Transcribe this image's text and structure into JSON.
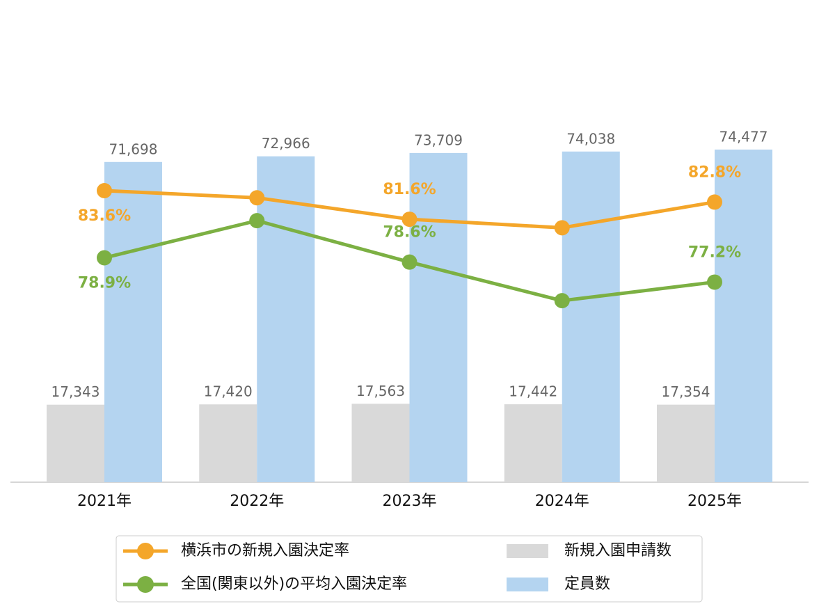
{
  "chart_data": {
    "type": "combo",
    "categories": [
      "2021年",
      "2022年",
      "2023年",
      "2024年",
      "2025年"
    ],
    "ylim": [
      0,
      80000
    ],
    "y2lim": [
      63.2,
      88.2
    ],
    "legend": "bottom",
    "series": [
      {
        "name": "横浜市の新規入園決定率",
        "type": "line",
        "axis": "y2",
        "color": "#f4a62a",
        "values": [
          83.6,
          83.1,
          81.6,
          81.0,
          82.8
        ],
        "value_labels": [
          "83.6%",
          null,
          "81.6%",
          null,
          "82.8%"
        ]
      },
      {
        "name": "全国(関東以外)の平均入園決定率",
        "type": "line",
        "axis": "y2",
        "color": "#7cb043",
        "values": [
          78.9,
          81.5,
          78.6,
          75.9,
          77.2
        ],
        "value_labels": [
          "78.9%",
          null,
          "78.6%",
          null,
          "77.2%"
        ]
      },
      {
        "name": "新規入園申請数",
        "type": "bar",
        "color": "#d9d9d9",
        "values": [
          17343,
          17420,
          17563,
          17442,
          17354
        ],
        "value_labels": [
          "17,343",
          "17,420",
          "17,563",
          "17,442",
          "17,354"
        ]
      },
      {
        "name": "定員数",
        "type": "bar",
        "color": "#b4d4f0",
        "values": [
          71698,
          72966,
          73709,
          74038,
          74477
        ],
        "value_labels": [
          "71,698",
          "72,966",
          "73,709",
          "74,038",
          "74,477"
        ]
      }
    ]
  }
}
